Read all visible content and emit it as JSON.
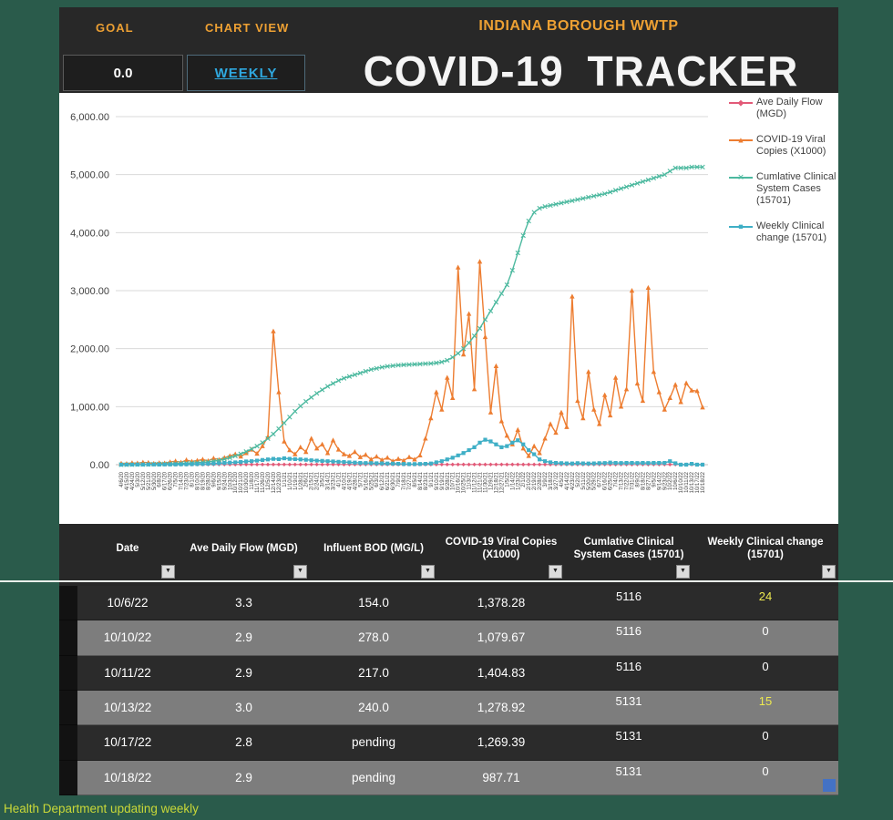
{
  "app": {
    "goal_label": "GOAL",
    "goal_value": "0.0",
    "chart_view_label": "CHART VIEW",
    "chart_view_value": "WEEKLY",
    "facility": "INDIANA BOROUGH WWTP",
    "title": "COVID-19  TRACKER",
    "footer_note": "Health Department updating weekly"
  },
  "colors": {
    "accent_orange": "#EDA033",
    "weekly_cyan": "#2FA8DF",
    "page_green": "#2A5B4B",
    "panel_dark": "#282828",
    "row_gray": "#7D7D7D",
    "highlight_yellow": "#EDE94F"
  },
  "chart_data": {
    "type": "line",
    "title": "",
    "ylim": [
      0,
      6000
    ],
    "y_ticks": [
      "6,000.00",
      "5,000.00",
      "4,000.00",
      "3,000.00",
      "2,000.00",
      "1,000.00",
      "0.00"
    ],
    "grid": true,
    "legend_position": "right",
    "x": [
      "4/6/20",
      "4/15/20",
      "4/24/20",
      "5/3/20",
      "5/12/20",
      "5/21/20",
      "5/30/20",
      "6/8/20",
      "6/17/20",
      "6/26/20",
      "7/5/20",
      "7/14/20",
      "7/23/20",
      "8/1/20",
      "8/10/20",
      "8/19/20",
      "8/28/20",
      "9/6/20",
      "9/15/20",
      "9/24/20",
      "10/3/20",
      "10/12/20",
      "10/21/20",
      "10/30/20",
      "11/8/20",
      "11/17/20",
      "11/26/20",
      "12/5/20",
      "12/14/20",
      "12/23/20",
      "1/1/21",
      "1/10/21",
      "1/19/21",
      "1/28/21",
      "2/6/21",
      "2/15/21",
      "2/24/21",
      "3/5/21",
      "3/14/21",
      "3/23/21",
      "4/1/21",
      "4/10/21",
      "4/19/21",
      "4/28/21",
      "5/7/21",
      "5/16/21",
      "5/25/21",
      "6/3/21",
      "6/12/21",
      "6/21/21",
      "6/30/21",
      "7/9/21",
      "7/18/21",
      "7/27/21",
      "8/5/21",
      "8/14/21",
      "8/23/21",
      "9/1/21",
      "9/10/21",
      "9/19/21",
      "9/28/21",
      "10/7/21",
      "10/16/21",
      "10/25/21",
      "11/3/21",
      "11/12/21",
      "11/21/21",
      "11/30/21",
      "12/9/21",
      "12/18/21",
      "12/27/21",
      "1/5/22",
      "1/14/22",
      "1/23/22",
      "2/1/22",
      "2/10/22",
      "2/19/22",
      "2/28/22",
      "3/9/22",
      "3/18/22",
      "3/27/22",
      "4/5/22",
      "4/14/22",
      "4/23/22",
      "5/2/22",
      "5/11/22",
      "5/20/22",
      "5/29/22",
      "6/7/22",
      "6/16/22",
      "6/25/22",
      "7/4/22",
      "7/13/22",
      "7/22/22",
      "7/31/22",
      "8/9/22",
      "8/18/22",
      "8/27/22",
      "9/5/22",
      "9/14/22",
      "9/23/22",
      "10/2/22",
      "10/6/22",
      "10/10/22",
      "10/11/22",
      "10/13/22",
      "10/17/22",
      "10/18/22"
    ],
    "series": [
      {
        "name": "Ave Daily Flow (MGD)",
        "color": "#E25A78",
        "marker": "diamond",
        "values": [
          3.2,
          2.9,
          3.5,
          3.1,
          2.8,
          3.4,
          3.0,
          2.7,
          3.6,
          3.2,
          3.2,
          2.9,
          3.5,
          3.1,
          2.8,
          3.4,
          3.0,
          2.7,
          3.6,
          3.2,
          3.2,
          2.9,
          3.5,
          3.1,
          2.8,
          3.4,
          3.0,
          2.7,
          3.6,
          3.2,
          3.2,
          2.9,
          3.5,
          3.1,
          2.8,
          3.4,
          3.0,
          2.7,
          3.6,
          3.2,
          3.2,
          2.9,
          3.5,
          3.1,
          2.8,
          3.4,
          3.0,
          2.7,
          3.6,
          3.2,
          3.2,
          2.9,
          3.5,
          3.1,
          2.8,
          3.4,
          3.0,
          2.7,
          3.6,
          3.2,
          3.2,
          2.9,
          3.5,
          3.1,
          2.8,
          3.4,
          3.0,
          2.7,
          3.6,
          3.2,
          3.2,
          2.9,
          3.5,
          3.1,
          2.8,
          3.4,
          3.0,
          2.7,
          3.6,
          3.2,
          3.2,
          2.9,
          3.5,
          3.1,
          2.8,
          3.4,
          3.0,
          2.7,
          3.6,
          3.2,
          3.2,
          2.9,
          3.5,
          3.1,
          2.8,
          3.4,
          3.0,
          2.7,
          3.6,
          3.2,
          3.0,
          2.9,
          3.3,
          2.9,
          2.9,
          3.0,
          2.8,
          2.9
        ]
      },
      {
        "name": "COVID-19 Viral Copies (X1000)",
        "color": "#ED7D31",
        "marker": "triangle",
        "values": [
          20,
          15,
          30,
          25,
          40,
          35,
          20,
          30,
          25,
          45,
          60,
          40,
          80,
          55,
          70,
          90,
          65,
          110,
          85,
          120,
          150,
          180,
          140,
          200,
          260,
          190,
          320,
          480,
          2300,
          1250,
          400,
          250,
          180,
          300,
          220,
          450,
          280,
          350,
          200,
          420,
          260,
          180,
          150,
          220,
          130,
          170,
          90,
          140,
          80,
          120,
          60,
          100,
          70,
          130,
          90,
          160,
          450,
          800,
          1250,
          950,
          1500,
          1150,
          3400,
          1900,
          2600,
          1300,
          3500,
          2200,
          900,
          1700,
          750,
          500,
          350,
          600,
          280,
          150,
          320,
          200,
          450,
          700,
          550,
          900,
          650,
          2900,
          1100,
          800,
          1600,
          950,
          700,
          1200,
          850,
          1500,
          1000,
          1300,
          3000,
          1400,
          1100,
          3050,
          1600,
          1250,
          950,
          1150,
          1378.28,
          1079.67,
          1404.83,
          1278.92,
          1269.39,
          987.71
        ]
      },
      {
        "name": "Cumlative Clinical System Cases (15701)",
        "color": "#4CB99F",
        "marker": "x",
        "values": [
          0,
          0,
          1,
          2,
          3,
          5,
          8,
          10,
          12,
          15,
          18,
          22,
          26,
          30,
          35,
          40,
          48,
          60,
          75,
          95,
          120,
          150,
          185,
          225,
          270,
          320,
          380,
          450,
          530,
          620,
          720,
          820,
          920,
          1010,
          1090,
          1160,
          1230,
          1290,
          1350,
          1400,
          1450,
          1490,
          1520,
          1550,
          1580,
          1610,
          1640,
          1660,
          1680,
          1695,
          1705,
          1715,
          1720,
          1725,
          1730,
          1735,
          1740,
          1745,
          1755,
          1770,
          1800,
          1850,
          1920,
          2000,
          2100,
          2220,
          2350,
          2500,
          2650,
          2800,
          2950,
          3100,
          3350,
          3650,
          3950,
          4200,
          4350,
          4420,
          4450,
          4470,
          4490,
          4510,
          4530,
          4550,
          4570,
          4590,
          4610,
          4630,
          4650,
          4670,
          4700,
          4730,
          4760,
          4790,
          4820,
          4850,
          4880,
          4910,
          4940,
          4970,
          5000,
          5060,
          5116,
          5116,
          5116,
          5131,
          5131,
          5131
        ]
      },
      {
        "name": "Weekly Clinical change  (15701)",
        "color": "#3FAFC6",
        "marker": "square",
        "values": [
          0,
          1,
          1,
          2,
          2,
          3,
          3,
          2,
          3,
          4,
          4,
          5,
          6,
          8,
          10,
          12,
          15,
          20,
          25,
          30,
          35,
          40,
          45,
          55,
          60,
          70,
          80,
          90,
          100,
          95,
          110,
          100,
          95,
          90,
          85,
          75,
          70,
          65,
          60,
          55,
          50,
          45,
          40,
          35,
          30,
          28,
          26,
          24,
          22,
          20,
          18,
          15,
          12,
          10,
          10,
          12,
          15,
          20,
          40,
          60,
          90,
          120,
          160,
          200,
          250,
          300,
          380,
          430,
          400,
          350,
          300,
          320,
          380,
          420,
          350,
          250,
          180,
          90,
          60,
          40,
          30,
          25,
          22,
          20,
          25,
          22,
          20,
          22,
          25,
          28,
          35,
          30,
          28,
          30,
          30,
          28,
          30,
          28,
          30,
          30,
          30,
          60,
          24,
          0,
          0,
          15,
          0,
          0
        ]
      }
    ]
  },
  "table": {
    "columns": [
      {
        "label": "Date"
      },
      {
        "label": "Ave Daily Flow (MGD)"
      },
      {
        "label": "Influent BOD (MG/L)"
      },
      {
        "label": "COVID-19 Viral Copies (X1000)"
      },
      {
        "label": "Cumlative Clinical System Cases (15701)"
      },
      {
        "label": "Weekly Clinical change  (15701)"
      }
    ],
    "rows": [
      {
        "date": "10/6/22",
        "flow": "3.3",
        "bod": "154.0",
        "viral": "1,378.28",
        "cumulative": "5116",
        "weekly": "24"
      },
      {
        "date": "10/10/22",
        "flow": "2.9",
        "bod": "278.0",
        "viral": "1,079.67",
        "cumulative": "5116",
        "weekly": "0"
      },
      {
        "date": "10/11/22",
        "flow": "2.9",
        "bod": "217.0",
        "viral": "1,404.83",
        "cumulative": "5116",
        "weekly": "0"
      },
      {
        "date": "10/13/22",
        "flow": "3.0",
        "bod": "240.0",
        "viral": "1,278.92",
        "cumulative": "5131",
        "weekly": "15"
      },
      {
        "date": "10/17/22",
        "flow": "2.8",
        "bod": "pending",
        "viral": "1,269.39",
        "cumulative": "5131",
        "weekly": "0"
      },
      {
        "date": "10/18/22",
        "flow": "2.9",
        "bod": "pending",
        "viral": "987.71",
        "cumulative": "5131",
        "weekly": "0"
      }
    ]
  }
}
